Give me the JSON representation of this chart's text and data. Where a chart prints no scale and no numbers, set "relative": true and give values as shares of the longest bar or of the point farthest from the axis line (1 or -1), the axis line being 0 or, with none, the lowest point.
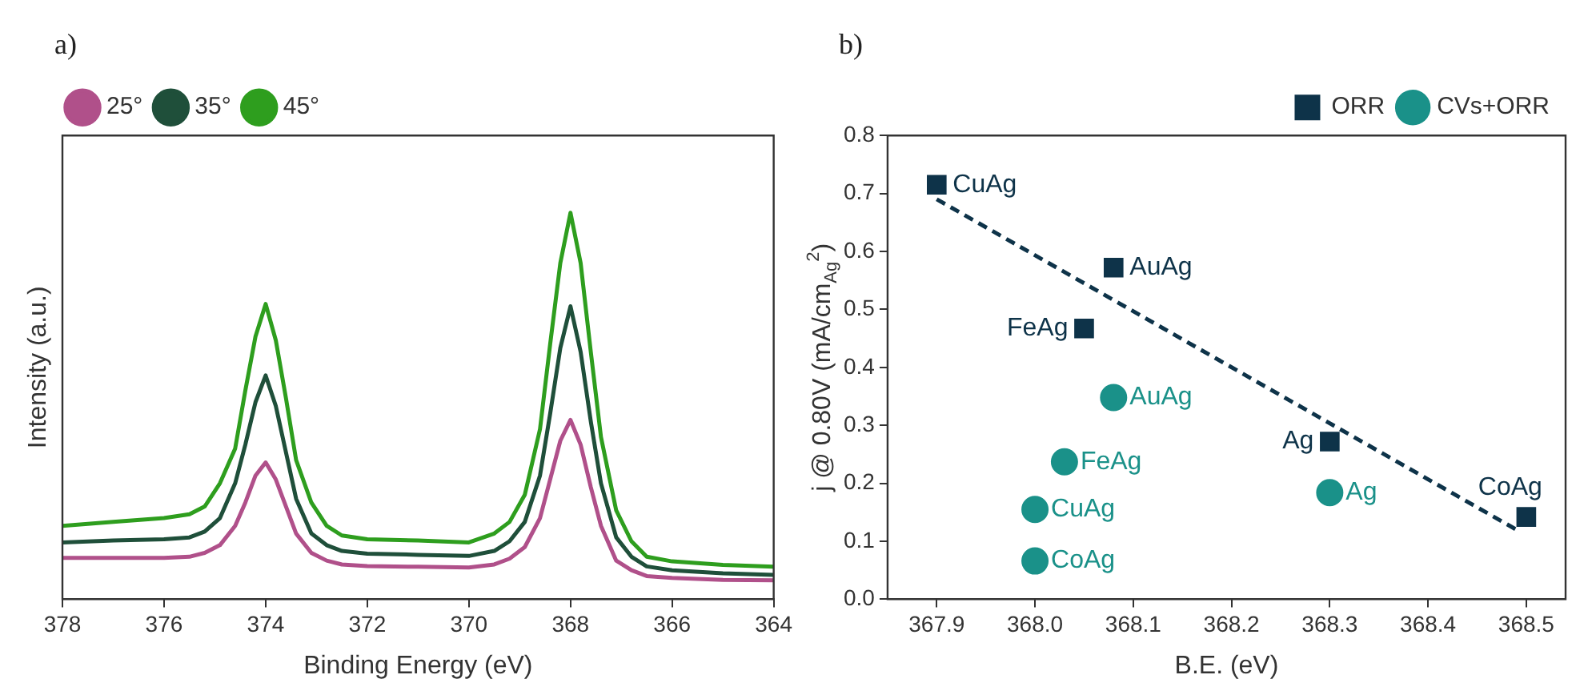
{
  "chart_data": [
    {
      "type": "line",
      "title": "a)",
      "xlabel": "Binding Energy (eV)",
      "ylabel": "Intensity (a.u.)",
      "relative": true,
      "xlim": [
        378,
        364
      ],
      "xticks": [
        378,
        376,
        374,
        372,
        370,
        368,
        366,
        364
      ],
      "grid": false,
      "legend": "top left",
      "marker": "none",
      "line_style": "solid",
      "x": [
        378,
        377,
        376,
        375.5,
        375.2,
        374.9,
        374.6,
        374.4,
        374.2,
        374,
        373.8,
        373.6,
        373.4,
        373.1,
        372.8,
        372.5,
        372,
        371,
        370,
        369.5,
        369.2,
        368.9,
        368.6,
        368.4,
        368.2,
        368,
        367.8,
        367.6,
        367.4,
        367.1,
        366.8,
        366.5,
        366,
        365,
        364
      ],
      "series": [
        {
          "name": "25°",
          "color": "#b0508a",
          "values": [
            0.107,
            0.107,
            0.107,
            0.11,
            0.12,
            0.14,
            0.19,
            0.25,
            0.32,
            0.354,
            0.31,
            0.24,
            0.17,
            0.12,
            0.1,
            0.09,
            0.086,
            0.084,
            0.082,
            0.09,
            0.105,
            0.135,
            0.21,
            0.31,
            0.41,
            0.464,
            0.4,
            0.29,
            0.19,
            0.1,
            0.075,
            0.06,
            0.055,
            0.05,
            0.049
          ]
        },
        {
          "name": "35°",
          "color": "#1f4f3a",
          "values": [
            0.147,
            0.152,
            0.155,
            0.16,
            0.175,
            0.21,
            0.3,
            0.4,
            0.51,
            0.579,
            0.5,
            0.38,
            0.26,
            0.17,
            0.14,
            0.125,
            0.118,
            0.115,
            0.112,
            0.125,
            0.15,
            0.2,
            0.32,
            0.48,
            0.65,
            0.758,
            0.64,
            0.46,
            0.3,
            0.16,
            0.11,
            0.085,
            0.075,
            0.067,
            0.063
          ]
        },
        {
          "name": "45°",
          "color": "#2e9e1e",
          "values": [
            0.19,
            0.2,
            0.21,
            0.22,
            0.24,
            0.3,
            0.39,
            0.54,
            0.68,
            0.764,
            0.67,
            0.52,
            0.36,
            0.25,
            0.19,
            0.165,
            0.155,
            0.152,
            0.147,
            0.17,
            0.2,
            0.27,
            0.44,
            0.66,
            0.87,
            1.0,
            0.87,
            0.64,
            0.42,
            0.23,
            0.15,
            0.11,
            0.098,
            0.089,
            0.084
          ]
        }
      ]
    },
    {
      "type": "scatter",
      "title": "b)",
      "xlabel": "B.E. (eV)",
      "ylabel": "j @ 0.80V (mA/cm$_{Ag}$$^{2}$)",
      "xlim": [
        367.85,
        368.54
      ],
      "ylim": [
        0,
        0.8
      ],
      "xticks": [
        {
          "value": 367.9,
          "label": "367.9"
        },
        {
          "value": 368,
          "label": "368.0"
        },
        {
          "value": 368.1,
          "label": "368.1"
        },
        {
          "value": 368.2,
          "label": "368.2"
        },
        {
          "value": 368.3,
          "label": "368.3"
        },
        {
          "value": 368.4,
          "label": "368.4"
        },
        {
          "value": 368.5,
          "label": "368.5"
        }
      ],
      "yticks": [
        {
          "value": 0,
          "label": "0.0"
        },
        0.1,
        0.2,
        0.3,
        0.4,
        0.5,
        0.6,
        0.7,
        0.8
      ],
      "grid": false,
      "legend": "top right",
      "series": [
        {
          "name": "ORR",
          "color": "#0e3349",
          "marker": "square",
          "x": [
            367.9,
            368.08,
            368.05,
            368.3,
            368.5
          ],
          "values": [
            0.715,
            0.572,
            0.467,
            0.272,
            0.142
          ]
        },
        {
          "name": "CVs+ORR",
          "color": "#1a9189",
          "marker": "circle",
          "x": [
            368.08,
            368.03,
            368.0,
            368.0,
            368.3
          ],
          "values": [
            0.348,
            0.237,
            0.155,
            0.066,
            0.184
          ]
        },
        {
          "type": "line",
          "color": "#0e3349",
          "marker": "none",
          "line_style": "dashed",
          "x": [
            367.9,
            368.49
          ],
          "values": [
            0.69,
            0.12
          ]
        }
      ],
      "annotations": [
        {
          "text": "CuAg",
          "x": 367.9,
          "y": 0.715
        },
        {
          "text": "AuAg",
          "x": 368.08,
          "y": 0.572
        },
        {
          "text": "FeAg",
          "x": 368.05,
          "y": 0.467
        },
        {
          "text": "Ag",
          "x": 368.3,
          "y": 0.272
        },
        {
          "text": "CoAg",
          "x": 368.5,
          "y": 0.142
        },
        {
          "text": "AuAg",
          "x": 368.08,
          "y": 0.348
        },
        {
          "text": "FeAg",
          "x": 368.03,
          "y": 0.237
        },
        {
          "text": "CuAg",
          "x": 368.0,
          "y": 0.155
        },
        {
          "text": "CoAg",
          "x": 368.0,
          "y": 0.066
        },
        {
          "text": "Ag",
          "x": 368.3,
          "y": 0.184
        }
      ]
    }
  ]
}
